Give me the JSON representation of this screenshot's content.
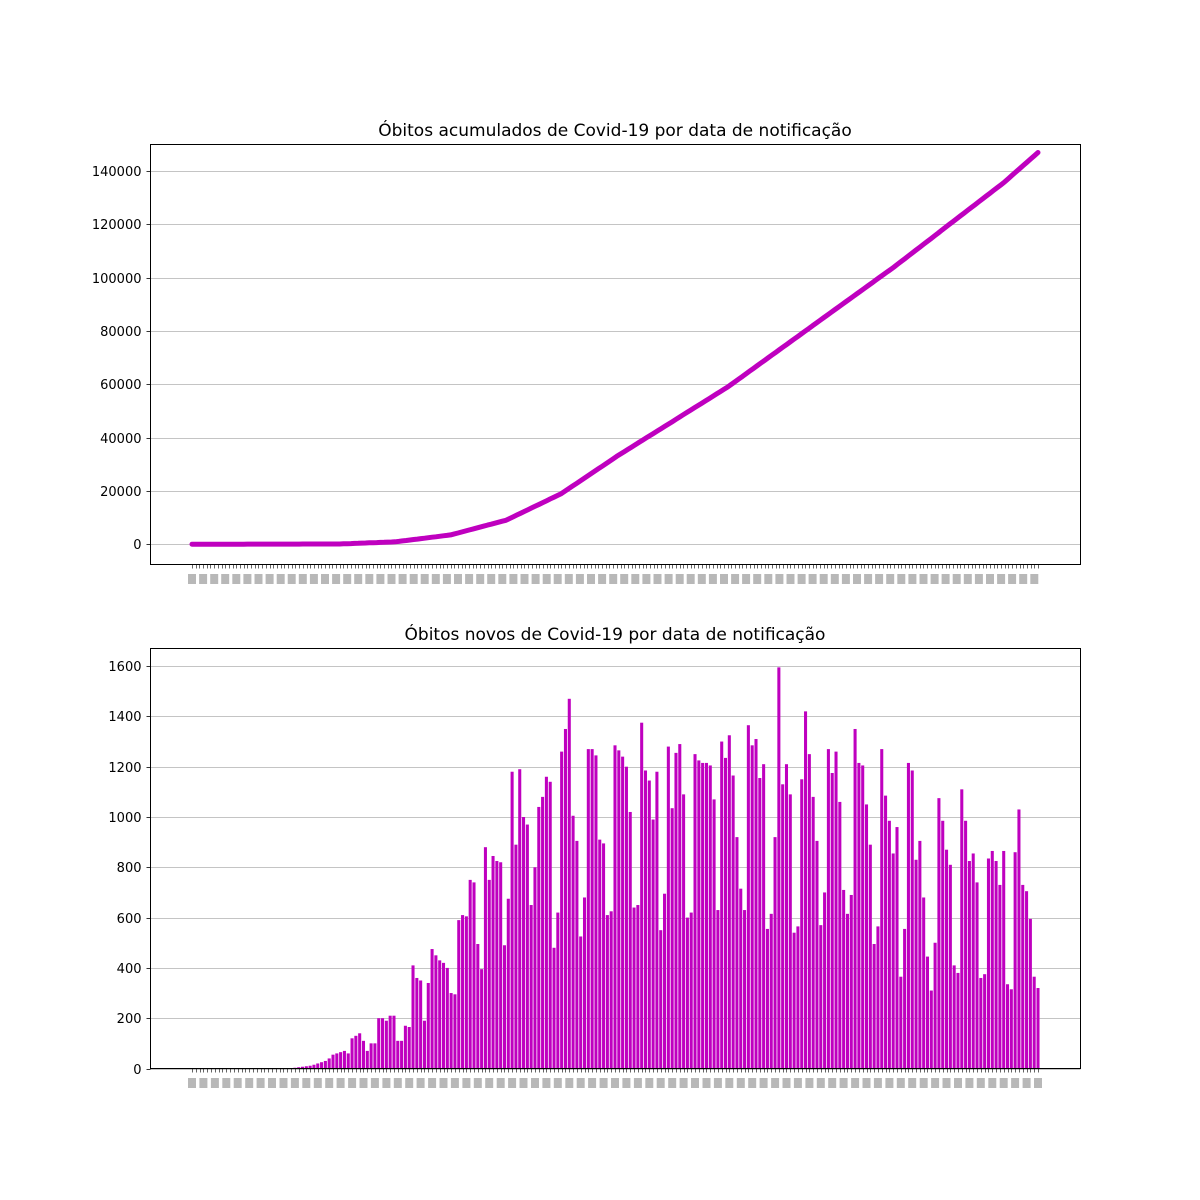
{
  "chart_data": [
    {
      "type": "line",
      "title": "Óbitos acumulados de Covid-19 por data de notificação",
      "xlabel": "",
      "ylabel": "",
      "ylim": [
        -7600,
        150000
      ],
      "yticks": [
        0,
        20000,
        40000,
        60000,
        80000,
        100000,
        120000,
        140000
      ],
      "grid": "y",
      "color": "#bf00bf",
      "n_points": 230,
      "x_tick_labels_note": "illegible overlapping date labels",
      "series_keypoints": [
        {
          "index": 0,
          "value": 0
        },
        {
          "index": 40,
          "value": 100
        },
        {
          "index": 55,
          "value": 900
        },
        {
          "index": 70,
          "value": 3500
        },
        {
          "index": 85,
          "value": 9000
        },
        {
          "index": 100,
          "value": 19000
        },
        {
          "index": 115,
          "value": 33000
        },
        {
          "index": 130,
          "value": 46000
        },
        {
          "index": 145,
          "value": 59000
        },
        {
          "index": 160,
          "value": 74000
        },
        {
          "index": 175,
          "value": 89000
        },
        {
          "index": 190,
          "value": 104000
        },
        {
          "index": 205,
          "value": 120000
        },
        {
          "index": 220,
          "value": 136000
        },
        {
          "index": 229,
          "value": 147000
        }
      ]
    },
    {
      "type": "bar",
      "title": "Óbitos novos de Covid-19 por data de notificação",
      "xlabel": "",
      "ylabel": "",
      "ylim": [
        0,
        1670
      ],
      "yticks": [
        0,
        200,
        400,
        600,
        800,
        1000,
        1200,
        1400,
        1600
      ],
      "grid": "y",
      "color": "#bf00bf",
      "x_tick_labels_note": "illegible overlapping date labels",
      "values": [
        0,
        0,
        0,
        0,
        0,
        0,
        0,
        0,
        0,
        0,
        0,
        0,
        0,
        0,
        0,
        0,
        0,
        0,
        0,
        0,
        0,
        0,
        0,
        0,
        0,
        1,
        2,
        3,
        5,
        7,
        9,
        11,
        15,
        20,
        25,
        30,
        40,
        55,
        60,
        65,
        70,
        60,
        120,
        130,
        140,
        110,
        70,
        100,
        100,
        200,
        200,
        190,
        210,
        210,
        110,
        110,
        170,
        165,
        410,
        360,
        350,
        190,
        340,
        475,
        450,
        430,
        420,
        400,
        300,
        295,
        590,
        610,
        605,
        750,
        740,
        495,
        395,
        880,
        750,
        845,
        825,
        820,
        490,
        675,
        1180,
        890,
        1190,
        1000,
        970,
        650,
        800,
        1040,
        1080,
        1160,
        1140,
        480,
        620,
        1260,
        1350,
        1470,
        1005,
        905,
        525,
        680,
        1270,
        1270,
        1245,
        910,
        895,
        610,
        625,
        1285,
        1265,
        1240,
        1200,
        1020,
        640,
        650,
        1375,
        1185,
        1145,
        990,
        1180,
        550,
        695,
        1280,
        1035,
        1255,
        1290,
        1090,
        600,
        620,
        1250,
        1225,
        1215,
        1215,
        1205,
        1070,
        630,
        1300,
        1235,
        1325,
        1165,
        920,
        715,
        630,
        1365,
        1285,
        1310,
        1155,
        1210,
        555,
        615,
        920,
        1595,
        1130,
        1210,
        1090,
        540,
        565,
        1150,
        1420,
        1250,
        1080,
        905,
        570,
        700,
        1270,
        1175,
        1260,
        1060,
        710,
        615,
        690,
        1350,
        1215,
        1205,
        1050,
        890,
        495,
        565,
        1270,
        1085,
        985,
        855,
        960,
        365,
        555,
        1215,
        1185,
        830,
        905,
        680,
        445,
        310,
        500,
        1075,
        985,
        870,
        810,
        410,
        380,
        1110,
        985,
        825,
        855,
        740,
        360,
        375,
        835,
        865,
        825,
        730,
        865,
        335,
        315,
        860,
        1030,
        730,
        705,
        595,
        365,
        320
      ]
    }
  ]
}
